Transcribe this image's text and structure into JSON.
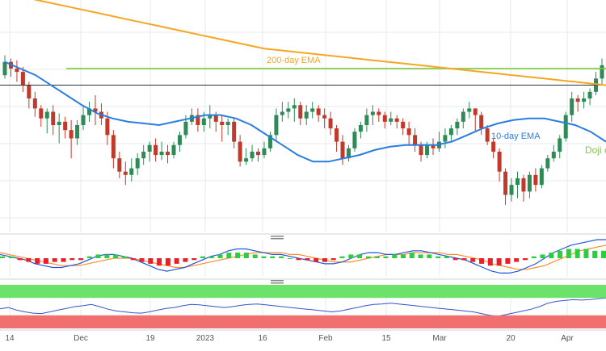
{
  "colors": {
    "up": "#2e8b57",
    "down": "#c0392b",
    "ema200": "#f5a623",
    "ema10": "#2a7de1",
    "resistance": "#7ccd3a",
    "support": "#2b2f3a",
    "macd_pos": "#2ecc40",
    "macd_neg": "#e8202a",
    "macd_line": "#2255dd",
    "signal_line": "#ff8c2a",
    "rsi_line": "#3355cc",
    "rsi_high_band": "#6be36b",
    "rsi_low_band": "#f07070",
    "grid": "#e6e9ee",
    "axis_text": "#555555"
  },
  "chart_data": {
    "type": "candlestick",
    "x_axis_labels": [
      "14",
      "Dec",
      "19",
      "2023",
      "16",
      "Feb",
      "15",
      "Mar",
      "20",
      "Apr"
    ],
    "annotations": {
      "ema200_label": "200-day EMA",
      "ema10_label": "10-day EMA",
      "doji_label": "Doji c"
    },
    "grid": true,
    "price": {
      "ylim": [
        0,
        100
      ],
      "candles": [
        [
          80,
          88,
          92,
          78
        ],
        [
          88,
          84,
          90,
          79
        ],
        [
          84,
          82,
          89,
          76
        ],
        [
          82,
          74,
          85,
          70
        ],
        [
          74,
          66,
          76,
          60
        ],
        [
          66,
          60,
          70,
          55
        ],
        [
          60,
          54,
          62,
          49
        ],
        [
          54,
          58,
          60,
          45
        ],
        [
          58,
          50,
          62,
          44
        ],
        [
          50,
          52,
          57,
          39
        ],
        [
          52,
          47,
          55,
          42
        ],
        [
          47,
          42,
          53,
          30
        ],
        [
          42,
          50,
          53,
          38
        ],
        [
          50,
          56,
          62,
          47
        ],
        [
          56,
          60,
          64,
          52
        ],
        [
          60,
          58,
          68,
          50
        ],
        [
          58,
          54,
          63,
          50
        ],
        [
          54,
          44,
          58,
          38
        ],
        [
          44,
          30,
          47,
          24
        ],
        [
          30,
          22,
          34,
          18
        ],
        [
          22,
          20,
          28,
          14
        ],
        [
          20,
          24,
          30,
          16
        ],
        [
          24,
          30,
          33,
          20
        ],
        [
          30,
          34,
          38,
          26
        ],
        [
          34,
          38,
          40,
          28
        ],
        [
          38,
          32,
          42,
          28
        ],
        [
          32,
          34,
          40,
          29
        ],
        [
          34,
          32,
          38,
          27
        ],
        [
          32,
          38,
          40,
          30
        ],
        [
          38,
          44,
          46,
          34
        ],
        [
          44,
          52,
          56,
          42
        ],
        [
          52,
          56,
          60,
          50
        ],
        [
          56,
          50,
          60,
          46
        ],
        [
          50,
          54,
          58,
          46
        ],
        [
          54,
          56,
          62,
          48
        ],
        [
          56,
          52,
          58,
          46
        ],
        [
          52,
          50,
          56,
          40
        ],
        [
          50,
          52,
          54,
          44
        ],
        [
          52,
          40,
          54,
          36
        ],
        [
          40,
          28,
          44,
          25
        ],
        [
          28,
          30,
          36,
          26
        ],
        [
          30,
          34,
          38,
          28
        ],
        [
          34,
          32,
          36,
          28
        ],
        [
          32,
          36,
          40,
          30
        ],
        [
          36,
          44,
          46,
          34
        ],
        [
          44,
          56,
          60,
          40
        ],
        [
          56,
          58,
          64,
          52
        ],
        [
          58,
          60,
          64,
          54
        ],
        [
          60,
          62,
          66,
          52
        ],
        [
          62,
          54,
          64,
          50
        ],
        [
          54,
          58,
          62,
          50
        ],
        [
          58,
          60,
          64,
          54
        ],
        [
          60,
          56,
          62,
          52
        ],
        [
          56,
          54,
          60,
          48
        ],
        [
          54,
          48,
          58,
          44
        ],
        [
          48,
          40,
          50,
          34
        ],
        [
          40,
          30,
          44,
          26
        ],
        [
          30,
          36,
          38,
          28
        ],
        [
          36,
          46,
          48,
          34
        ],
        [
          46,
          50,
          52,
          42
        ],
        [
          50,
          56,
          60,
          46
        ],
        [
          56,
          58,
          62,
          50
        ],
        [
          58,
          56,
          60,
          52
        ],
        [
          56,
          52,
          58,
          48
        ],
        [
          52,
          54,
          58,
          50
        ],
        [
          54,
          52,
          56,
          48
        ],
        [
          52,
          48,
          54,
          44
        ],
        [
          48,
          44,
          52,
          38
        ],
        [
          44,
          38,
          48,
          34
        ],
        [
          38,
          32,
          40,
          28
        ],
        [
          32,
          38,
          40,
          30
        ],
        [
          38,
          36,
          42,
          32
        ],
        [
          36,
          40,
          46,
          34
        ],
        [
          40,
          44,
          48,
          36
        ],
        [
          44,
          48,
          50,
          40
        ],
        [
          48,
          52,
          54,
          44
        ],
        [
          52,
          58,
          60,
          48
        ],
        [
          58,
          60,
          64,
          54
        ],
        [
          60,
          56,
          60,
          46
        ],
        [
          56,
          48,
          58,
          44
        ],
        [
          48,
          40,
          50,
          38
        ],
        [
          40,
          34,
          42,
          30
        ],
        [
          34,
          22,
          36,
          16
        ],
        [
          22,
          8,
          24,
          2
        ],
        [
          8,
          14,
          18,
          4
        ],
        [
          14,
          18,
          22,
          6
        ],
        [
          18,
          10,
          20,
          4
        ],
        [
          10,
          20,
          22,
          6
        ],
        [
          20,
          14,
          24,
          10
        ],
        [
          14,
          24,
          26,
          12
        ],
        [
          24,
          30,
          32,
          22
        ],
        [
          30,
          34,
          38,
          28
        ],
        [
          34,
          42,
          44,
          30
        ],
        [
          42,
          56,
          58,
          40
        ],
        [
          56,
          66,
          70,
          52
        ],
        [
          66,
          64,
          68,
          58
        ],
        [
          64,
          66,
          70,
          60
        ],
        [
          66,
          70,
          72,
          62
        ],
        [
          70,
          78,
          82,
          68
        ],
        [
          78,
          86,
          90,
          74
        ]
      ],
      "ema200": [
        130,
        128,
        126,
        124,
        122,
        120,
        118,
        116,
        114,
        112,
        110,
        108,
        106,
        104,
        102,
        100,
        98,
        96,
        95,
        94,
        93,
        92,
        91,
        90,
        89,
        88,
        87,
        86,
        85,
        84,
        83,
        82,
        81,
        80,
        79,
        78,
        77,
        76,
        75,
        74
      ],
      "ema10": [
        88,
        84,
        80,
        74,
        68,
        62,
        57,
        54,
        52,
        51,
        50,
        52,
        54,
        56,
        56,
        54,
        50,
        44,
        38,
        32,
        28,
        28,
        30,
        32,
        35,
        37,
        38,
        38,
        38,
        40,
        44,
        48,
        51,
        53,
        54,
        54,
        52,
        50,
        46,
        40
      ],
      "resistance_level": 84,
      "support_level": 74
    },
    "macd": {
      "ylim": [
        -10,
        10
      ],
      "histogram": [
        1,
        1,
        -1,
        -2,
        -3,
        -3,
        -2,
        -2,
        -1,
        -1,
        1,
        2,
        2,
        2,
        1,
        -1,
        -2,
        -3,
        -4,
        -4,
        -3,
        -2,
        -1,
        1,
        1,
        2,
        3,
        3,
        3,
        2,
        1,
        1,
        1,
        0,
        -1,
        -1,
        -2,
        -2,
        -1,
        1,
        2,
        2,
        1,
        1,
        1,
        2,
        2,
        3,
        2,
        2,
        1,
        1,
        -1,
        -1,
        -2,
        -3,
        -4,
        -4,
        -3,
        -2,
        -1,
        1,
        2,
        3,
        4,
        5,
        5,
        5,
        4,
        4
      ],
      "macd_line": [
        2,
        1,
        0,
        -1,
        -3,
        -4,
        -5,
        -5,
        -4,
        -3,
        -1,
        1,
        2,
        2,
        1,
        0,
        -2,
        -4,
        -6,
        -7,
        -6,
        -5,
        -3,
        -1,
        1,
        2,
        4,
        5,
        5,
        4,
        3,
        2,
        2,
        1,
        0,
        -1,
        -2,
        -3,
        -3,
        -2,
        0,
        2,
        3,
        3,
        2,
        2,
        3,
        4,
        4,
        3,
        2,
        1,
        0,
        -1,
        -3,
        -5,
        -7,
        -8,
        -8,
        -7,
        -5,
        -3,
        0,
        3,
        5,
        7,
        8,
        9,
        10,
        10
      ],
      "signal_line": [
        3,
        2,
        1,
        0,
        -1,
        -2,
        -3,
        -4,
        -4,
        -4,
        -3,
        -2,
        -1,
        0,
        0,
        0,
        -1,
        -2,
        -3,
        -4,
        -5,
        -5,
        -4,
        -3,
        -2,
        -1,
        0,
        1,
        2,
        3,
        3,
        3,
        3,
        2,
        2,
        1,
        0,
        -1,
        -2,
        -2,
        -2,
        -1,
        0,
        1,
        2,
        2,
        2,
        3,
        3,
        3,
        3,
        2,
        2,
        1,
        0,
        -1,
        -3,
        -4,
        -5,
        -6,
        -6,
        -5,
        -4,
        -2,
        0,
        2,
        4,
        5,
        6,
        7
      ]
    },
    "rsi": {
      "ylim": [
        0,
        100
      ],
      "bands": {
        "upper_fill": [
          70,
          100
        ],
        "lower_fill": [
          0,
          30
        ]
      },
      "values": [
        45,
        48,
        42,
        38,
        35,
        34,
        38,
        42,
        46,
        50,
        52,
        55,
        50,
        44,
        40,
        38,
        36,
        35,
        38,
        42,
        46,
        48,
        52,
        55,
        54,
        52,
        50,
        48,
        50,
        53,
        55,
        56,
        54,
        52,
        50,
        48,
        46,
        44,
        42,
        40,
        38,
        40,
        44,
        48,
        52,
        55,
        56,
        58,
        56,
        54,
        52,
        50,
        48,
        46,
        44,
        42,
        40,
        38,
        34,
        30,
        28,
        32,
        36,
        40,
        44,
        50,
        58,
        62,
        64,
        66,
        65,
        66,
        68,
        70
      ]
    }
  }
}
